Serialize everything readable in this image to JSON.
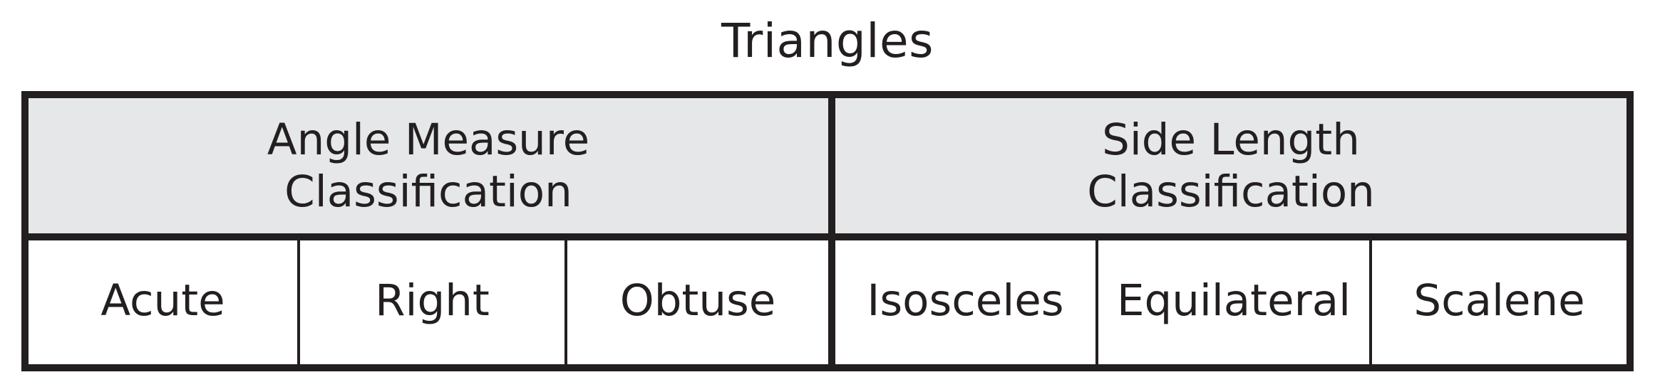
{
  "title": "Triangles",
  "table": {
    "groups": [
      {
        "label": "Angle Measure\nClassification",
        "items": [
          "Acute",
          "Right",
          "Obtuse"
        ]
      },
      {
        "label": "Side Length\nClassification",
        "items": [
          "Isosceles",
          "Equilateral",
          "Scalene"
        ]
      }
    ]
  },
  "colors": {
    "header_background": "#e6e7e8",
    "border": "#231f20",
    "text": "#231f20"
  }
}
